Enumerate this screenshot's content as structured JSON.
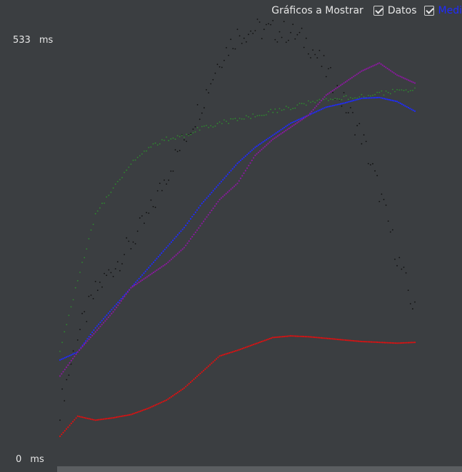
{
  "header": {
    "title": "Gráficos a Mostrar",
    "options": [
      {
        "label": "Datos",
        "checked": true,
        "color": "#e6e6e6"
      },
      {
        "label": "Medi",
        "checked": true,
        "color": "#1f2bff"
      }
    ]
  },
  "y_axis": {
    "max_label": "533",
    "min_label": "0",
    "unit": "ms"
  },
  "chart_data": {
    "type": "scatter",
    "x": [
      0,
      5,
      10,
      15,
      20,
      25,
      30,
      35,
      40,
      45,
      50,
      55,
      60,
      65,
      70,
      75,
      80,
      85,
      90,
      95,
      100
    ],
    "ylim": [
      0,
      533
    ],
    "series": [
      {
        "color": "#111111",
        "style": "dots",
        "values": [
          60,
          150,
          205,
          235,
          265,
          300,
          350,
          395,
          440,
          495,
          525,
          532,
          530,
          528,
          515,
          480,
          440,
          400,
          330,
          250,
          180
        ]
      },
      {
        "color": "#2e8b2e",
        "style": "dots",
        "values": [
          130,
          220,
          300,
          335,
          365,
          385,
          395,
          400,
          410,
          415,
          420,
          425,
          430,
          435,
          440,
          443,
          446,
          449,
          452,
          455,
          457
        ]
      },
      {
        "color": "#1f2bff",
        "style": "line",
        "values": [
          120,
          130,
          160,
          185,
          210,
          235,
          260,
          285,
          315,
          340,
          365,
          385,
          400,
          415,
          425,
          435,
          440,
          446,
          447,
          442,
          430
        ]
      },
      {
        "color": "#8a1a9e",
        "style": "line",
        "values": [
          100,
          130,
          155,
          180,
          210,
          225,
          240,
          260,
          290,
          320,
          340,
          375,
          395,
          410,
          425,
          450,
          465,
          480,
          490,
          475,
          465
        ]
      },
      {
        "color": "#e01010",
        "style": "line",
        "values": [
          25,
          50,
          45,
          48,
          52,
          60,
          70,
          85,
          105,
          125,
          132,
          140,
          148,
          150,
          149,
          147,
          145,
          143,
          142,
          141,
          142
        ]
      }
    ]
  }
}
